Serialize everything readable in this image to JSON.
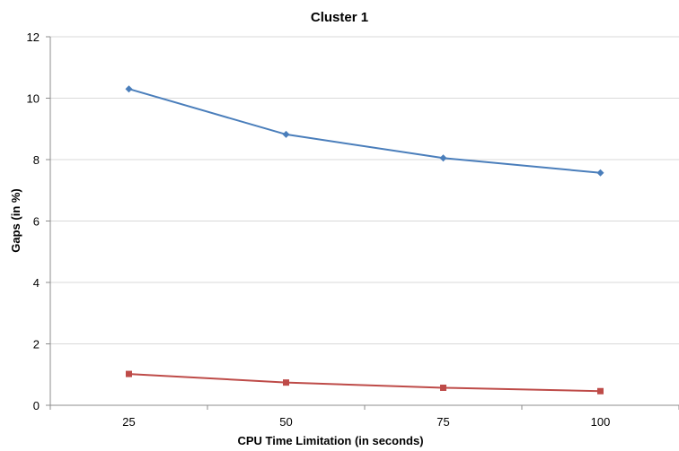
{
  "chart_data": {
    "type": "line",
    "title": "Cluster 1",
    "xlabel": "CPU Time Limitation (in seconds)",
    "ylabel": "Gaps (in %)",
    "categories": [
      "25",
      "50",
      "75",
      "100"
    ],
    "ylim": [
      0,
      12
    ],
    "yticks": [
      "0",
      "2",
      "4",
      "6",
      "8",
      "10",
      "12"
    ],
    "grid": true,
    "legend": "none",
    "series": [
      {
        "color": "#4a7ebb",
        "marker": "diamond",
        "values": [
          10.3,
          8.82,
          8.05,
          7.57
        ]
      },
      {
        "color": "#be4b48",
        "marker": "square",
        "values": [
          1.02,
          0.74,
          0.57,
          0.46
        ]
      }
    ]
  }
}
